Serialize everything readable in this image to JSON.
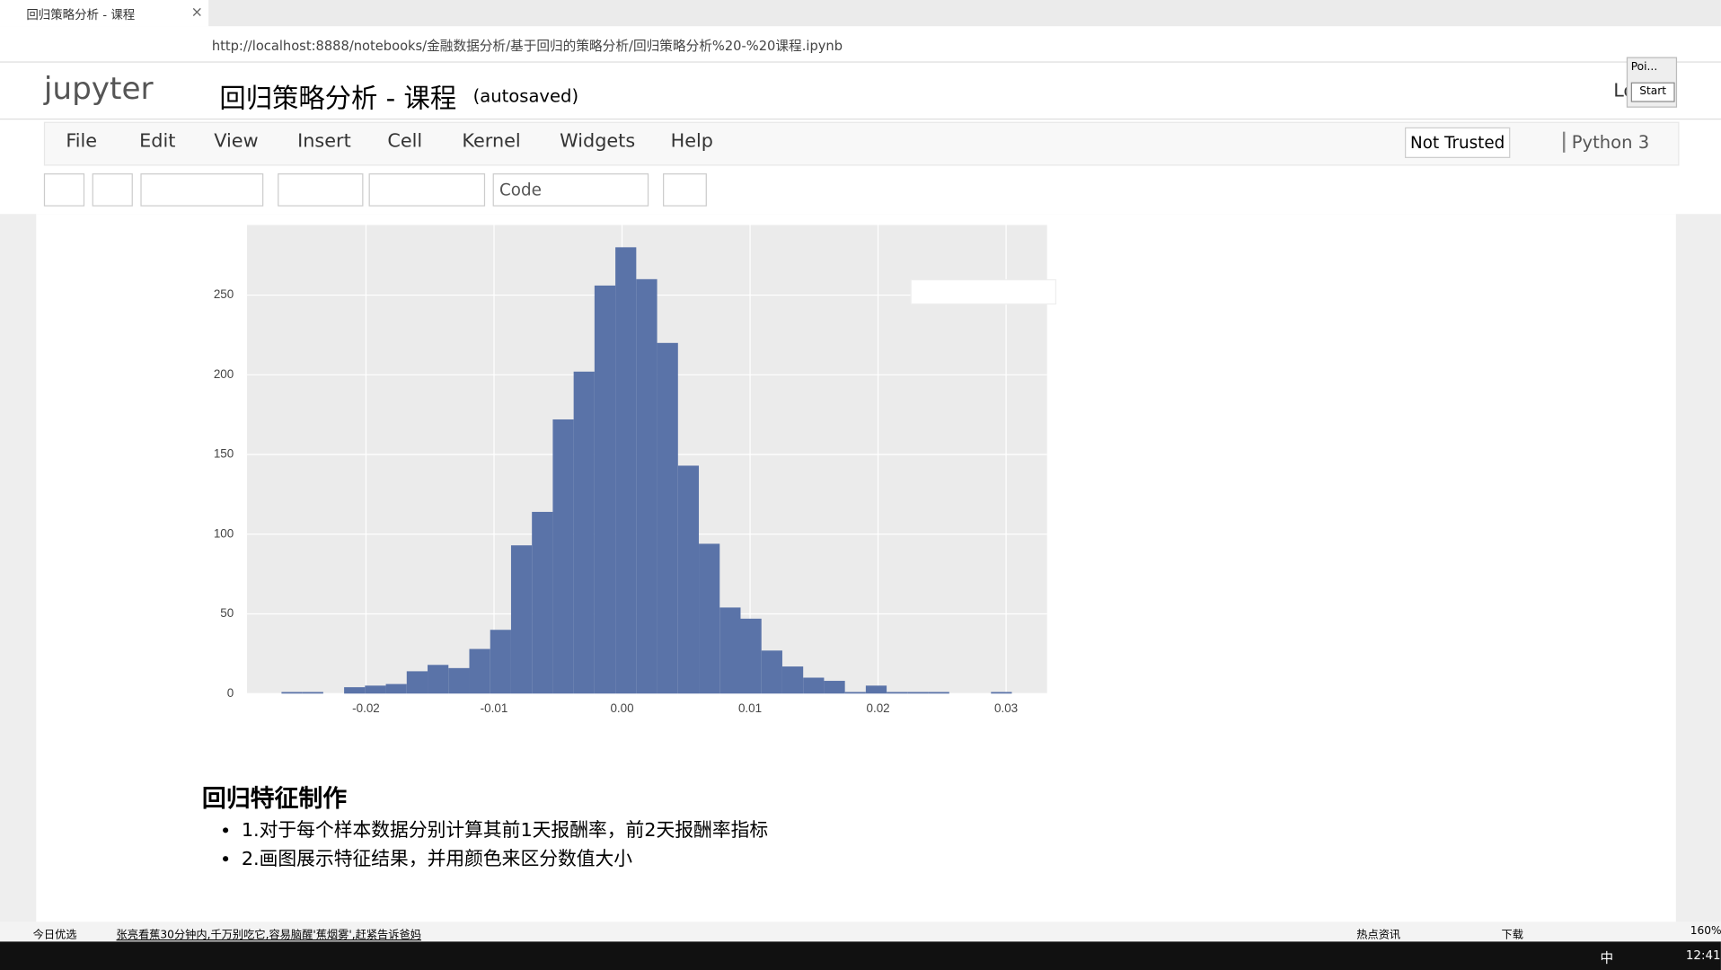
{
  "browser": {
    "tab_title": "回归策略分析 - 课程",
    "url": "http://localhost:8888/notebooks/金融数据分析/基于回归的策略分析/回归策略分析%20-%20课程.ipynb"
  },
  "header": {
    "logo": "jupyter",
    "title": "回归策略分析 - 课程",
    "status": "(autosaved)",
    "login": "Lo"
  },
  "popup": {
    "title": "Poi...",
    "button": "Start"
  },
  "menu": [
    "File",
    "Edit",
    "View",
    "Insert",
    "Cell",
    "Kernel",
    "Widgets",
    "Help"
  ],
  "trust": "Not Trusted",
  "kernel": "Python 3",
  "cell_type": "Code",
  "chart_data": {
    "type": "histogram",
    "color": "#5a73a8",
    "grid": true,
    "bins": [
      -0.0266,
      -0.02497,
      -0.02334,
      -0.02171,
      -0.02008,
      -0.01845,
      -0.01682,
      -0.01519,
      -0.01356,
      -0.01193,
      -0.0103,
      -0.00867,
      -0.00704,
      -0.00541,
      -0.00378,
      -0.00215,
      -0.00052,
      0.00111,
      0.00274,
      0.00437,
      0.006,
      0.00763,
      0.00926,
      0.01089,
      0.01252,
      0.01415,
      0.01578,
      0.01741,
      0.01904,
      0.02067,
      0.0223,
      0.02393,
      0.02556,
      0.02719,
      0.02882,
      0.03045
    ],
    "values": [
      1,
      1,
      0,
      4,
      5,
      6,
      14,
      18,
      16,
      28,
      40,
      93,
      114,
      172,
      202,
      256,
      280,
      260,
      220,
      143,
      94,
      54,
      47,
      27,
      17,
      10,
      8,
      1,
      5,
      1,
      1,
      1,
      0,
      0,
      1
    ],
    "xlim": [
      -0.0293,
      0.0332
    ],
    "ylim": [
      0,
      294
    ],
    "xticks": [
      -0.02,
      -0.01,
      {
        "value": 0,
        "label": "0.00"
      },
      0.01,
      0.02,
      0.03
    ],
    "yticks": [
      0,
      50,
      100,
      150,
      200,
      250
    ]
  },
  "section": {
    "heading": "回归特征制作",
    "bullets": [
      "1.对于每个样本数据分别计算其前1天报酬率，前2天报酬率指标",
      "2.画图展示特征结果，并用颜色来区分数值大小"
    ]
  },
  "statusbar": {
    "left": "今日优选",
    "news": "张亮看蕉30分钟内,千万别吃它,容易脑醒'蕉烟雾',赶紧告诉爸妈",
    "hot": "热点资讯",
    "download": "下载",
    "zoom": "160%"
  },
  "taskbar": {
    "ime": "中",
    "time": "12:41"
  }
}
